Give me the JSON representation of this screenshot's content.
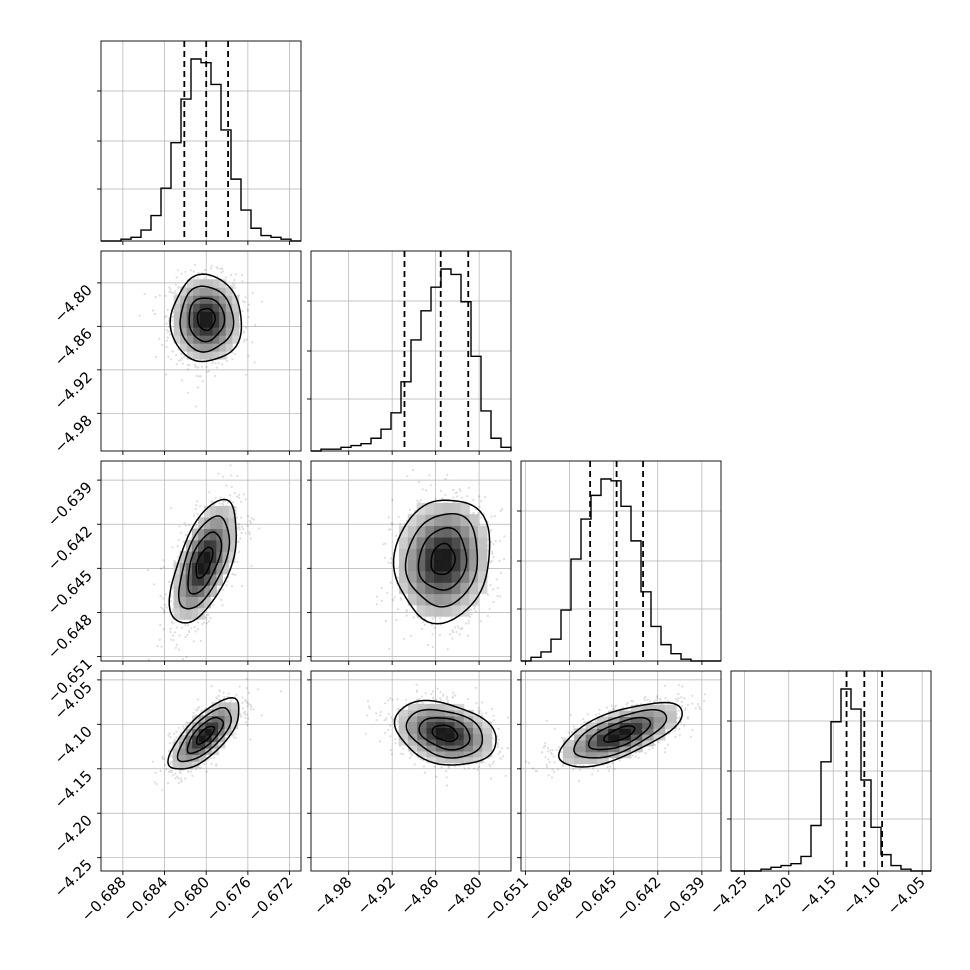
{
  "chart_data": {
    "type": "corner",
    "parameters": [
      {
        "ticks": [
          -0.688,
          -0.684,
          -0.68,
          -0.676,
          -0.672
        ],
        "tick_labels": [
          "−0.688",
          "−0.684",
          "−0.680",
          "−0.676",
          "−0.672"
        ],
        "range": [
          -0.6901,
          -0.6709
        ]
      },
      {
        "ticks": [
          -4.98,
          -4.92,
          -4.86,
          -4.8
        ],
        "tick_labels": [
          "−4.98",
          "−4.92",
          "−4.86",
          "−4.80"
        ],
        "range": [
          -5.032,
          -4.756
        ]
      },
      {
        "ticks": [
          -0.651,
          -0.648,
          -0.645,
          -0.642,
          -0.639
        ],
        "tick_labels": [
          "−0.651",
          "−0.648",
          "−0.645",
          "−0.642",
          "−0.639"
        ],
        "range": [
          -0.6513,
          -0.6377
        ]
      },
      {
        "ticks": [
          -4.25,
          -4.2,
          -4.15,
          -4.1,
          -4.05
        ],
        "tick_labels": [
          "−4.25",
          "−4.20",
          "−4.15",
          "−4.10",
          "−4.05"
        ],
        "range": [
          -4.265,
          -4.04
        ]
      }
    ],
    "histograms": [
      {
        "param": 0,
        "counts": [
          0,
          0,
          1,
          2,
          6,
          14,
          29,
          54,
          78,
          100,
          98,
          86,
          61,
          34,
          17,
          7,
          3,
          2,
          1,
          0
        ],
        "quantiles": [
          -0.6821,
          -0.68,
          -0.6779
        ]
      },
      {
        "param": 1,
        "counts": [
          0,
          1,
          1,
          2,
          3,
          4,
          7,
          12,
          21,
          38,
          61,
          77,
          90,
          100,
          97,
          82,
          52,
          22,
          7,
          2
        ],
        "quantiles": [
          -4.903,
          -4.853,
          -4.815
        ]
      },
      {
        "param": 2,
        "counts": [
          0,
          2,
          5,
          12,
          28,
          56,
          78,
          91,
          100,
          99,
          85,
          66,
          38,
          19,
          9,
          4,
          1,
          0,
          0,
          0
        ],
        "quantiles": [
          -0.6466,
          -0.6448,
          -0.643
        ]
      },
      {
        "param": 3,
        "counts": [
          0,
          0,
          0,
          1,
          2,
          3,
          4,
          8,
          25,
          60,
          82,
          100,
          89,
          50,
          24,
          9,
          3,
          1,
          0,
          0
        ],
        "quantiles": [
          -4.135,
          -4.115,
          -4.095
        ]
      }
    ],
    "joint_distributions": [
      {
        "x_param": 0,
        "y_param": 1,
        "mean": [
          -0.68,
          -4.85
        ],
        "std": [
          0.0017,
          0.03
        ],
        "corr": 0.0
      },
      {
        "x_param": 0,
        "y_param": 2,
        "mean": [
          -0.6802,
          -0.6446
        ],
        "std": [
          0.0016,
          0.0021
        ],
        "corr": 0.58
      },
      {
        "x_param": 0,
        "y_param": 3,
        "mean": [
          -0.6801,
          -4.112
        ],
        "std": [
          0.0017,
          0.02
        ],
        "corr": 0.72
      },
      {
        "x_param": 1,
        "y_param": 2,
        "mean": [
          -4.85,
          -0.6444
        ],
        "std": [
          0.033,
          0.0021
        ],
        "corr": 0.1
      },
      {
        "x_param": 1,
        "y_param": 3,
        "mean": [
          -4.847,
          -4.11
        ],
        "std": [
          0.035,
          0.018
        ],
        "corr": -0.28
      },
      {
        "x_param": 2,
        "y_param": 3,
        "mean": [
          -0.6446,
          -4.111
        ],
        "std": [
          0.0021,
          0.018
        ],
        "corr": 0.66
      }
    ],
    "contour_levels_sigma": [
      0.5,
      1.0,
      1.5,
      2.0
    ],
    "grid": true
  }
}
